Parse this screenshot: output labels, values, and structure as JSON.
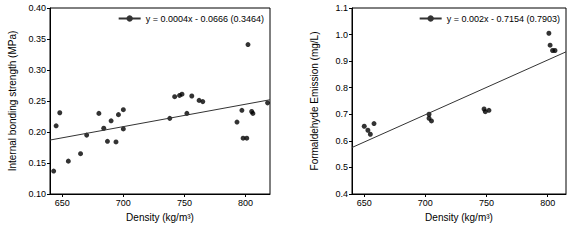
{
  "chart_data": [
    {
      "type": "scatter",
      "x_label": "Density (kg/m³)",
      "y_label": "Internal bonding strength (MPa)",
      "xlim": [
        640,
        820
      ],
      "xticks": [
        650,
        700,
        750,
        800
      ],
      "ylim": [
        0.1,
        0.4
      ],
      "yticks": [
        {
          "value": 0.1,
          "label": "0.10"
        },
        {
          "value": 0.15,
          "label": "0.15"
        },
        {
          "value": 0.2,
          "label": "0.20"
        },
        {
          "value": 0.25,
          "label": "0.25"
        },
        {
          "value": 0.3,
          "label": "0.30"
        },
        {
          "value": 0.35,
          "label": "0.35"
        },
        {
          "value": 0.4,
          "label": "0.40"
        }
      ],
      "grid": false,
      "legend": "upper right",
      "series": [
        {
          "type": "scatter",
          "marker": "circle",
          "color": "#000000",
          "x": [
            643,
            645,
            648,
            655,
            665,
            670,
            680,
            684,
            687,
            690,
            694,
            696,
            700,
            700,
            738,
            742,
            746,
            748,
            752,
            756,
            762,
            765,
            793,
            797,
            798,
            801,
            802,
            805,
            806,
            818
          ],
          "values": [
            0.137,
            0.21,
            0.231,
            0.153,
            0.165,
            0.195,
            0.23,
            0.206,
            0.185,
            0.218,
            0.184,
            0.228,
            0.236,
            0.205,
            0.222,
            0.257,
            0.259,
            0.261,
            0.23,
            0.258,
            0.251,
            0.249,
            0.216,
            0.235,
            0.19,
            0.19,
            0.341,
            0.233,
            0.23,
            0.247
          ]
        },
        {
          "type": "line",
          "name": "y = 0.0004x - 0.0666 (0.3464)",
          "color": "#333333",
          "line_style": "solid",
          "x": [
            640,
            820
          ],
          "values": [
            0.187,
            0.252
          ]
        }
      ]
    },
    {
      "type": "scatter",
      "x_label": "Density (kg/m³)",
      "y_label": "Formaldehyde Emission (mg/L)",
      "xlim": [
        640,
        815
      ],
      "xticks": [
        650,
        700,
        750,
        800
      ],
      "ylim": [
        0.4,
        1.1
      ],
      "yticks": [
        0.4,
        0.5,
        0.6,
        0.7,
        0.8,
        0.9,
        {
          "value": 1.0,
          "label": "1.0"
        },
        1.1
      ],
      "grid": false,
      "legend": "upper right",
      "series": [
        {
          "type": "scatter",
          "marker": "circle",
          "color": "#000000",
          "x": [
            650,
            653,
            655,
            658,
            703,
            703,
            705,
            748,
            749,
            752,
            801,
            802,
            804,
            806
          ],
          "values": [
            0.655,
            0.64,
            0.625,
            0.665,
            0.7,
            0.685,
            0.675,
            0.72,
            0.71,
            0.715,
            1.005,
            0.96,
            0.94,
            0.94
          ]
        },
        {
          "type": "line",
          "name": "y = 0.002x - 0.7154 (0.7903)",
          "color": "#333333",
          "line_style": "solid",
          "x": [
            640,
            815
          ],
          "values": [
            0.575,
            0.935
          ]
        }
      ]
    }
  ]
}
